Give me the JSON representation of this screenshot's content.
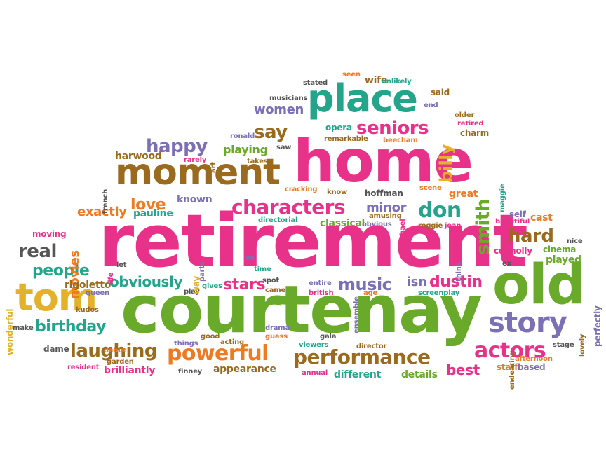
{
  "palette": {
    "magenta": "#e8328a",
    "green": "#6aaa2a",
    "brown": "#9a6a1e",
    "purple": "#7b70b6",
    "teal": "#22a58a",
    "orange": "#ee7a22",
    "yellow": "#e4b12a",
    "gray": "#555555"
  },
  "words": [
    {
      "text": "retirement",
      "color": "magenta"
    },
    {
      "text": "courtenay",
      "color": "green"
    },
    {
      "text": "home",
      "color": "magenta"
    },
    {
      "text": "old",
      "color": "green"
    },
    {
      "text": "place",
      "color": "teal"
    },
    {
      "text": "moment",
      "color": "brown"
    },
    {
      "text": "tom",
      "color": "yellow"
    },
    {
      "text": "story",
      "color": "purple"
    },
    {
      "text": "powerful",
      "color": "orange"
    },
    {
      "text": "performance",
      "color": "brown"
    },
    {
      "text": "characters",
      "color": "magenta"
    },
    {
      "text": "laughing",
      "color": "brown"
    },
    {
      "text": "actors",
      "color": "magenta"
    },
    {
      "text": "seniors",
      "color": "magenta"
    },
    {
      "text": "happy",
      "color": "purple"
    },
    {
      "text": "say",
      "color": "brown"
    },
    {
      "text": "don",
      "color": "teal"
    },
    {
      "text": "love",
      "color": "orange"
    },
    {
      "text": "birthday",
      "color": "teal"
    },
    {
      "text": "real",
      "color": "gray"
    },
    {
      "text": "people",
      "color": "teal"
    },
    {
      "text": "hard",
      "color": "brown"
    },
    {
      "text": "music",
      "color": "purple"
    },
    {
      "text": "dustin",
      "color": "magenta"
    },
    {
      "text": "obviously",
      "color": "teal"
    },
    {
      "text": "smith",
      "color": "green"
    },
    {
      "text": "billy",
      "color": "yellow"
    },
    {
      "text": "stars",
      "color": "magenta"
    },
    {
      "text": "exactly",
      "color": "orange"
    },
    {
      "text": "movies",
      "color": "orange"
    },
    {
      "text": "women",
      "color": "purple"
    },
    {
      "text": "best",
      "color": "magenta"
    },
    {
      "text": "isn",
      "color": "purple"
    },
    {
      "text": "minor",
      "color": "purple"
    },
    {
      "text": "known",
      "color": "purple"
    },
    {
      "text": "playing",
      "color": "green"
    },
    {
      "text": "harwood",
      "color": "brown"
    },
    {
      "text": "pauline",
      "color": "teal"
    },
    {
      "text": "brilliantly",
      "color": "magenta"
    },
    {
      "text": "appearance",
      "color": "brown"
    },
    {
      "text": "different",
      "color": "teal"
    },
    {
      "text": "details",
      "color": "green"
    },
    {
      "text": "classical",
      "color": "green"
    },
    {
      "text": "rigoletto",
      "color": "brown"
    },
    {
      "text": "opera",
      "color": "teal"
    },
    {
      "text": "great",
      "color": "orange"
    },
    {
      "text": "cast",
      "color": "orange"
    },
    {
      "text": "played",
      "color": "green"
    },
    {
      "text": "staff",
      "color": "orange"
    },
    {
      "text": "based",
      "color": "purple"
    },
    {
      "text": "dame",
      "color": "gray"
    },
    {
      "text": "wife",
      "color": "brown"
    },
    {
      "text": "said",
      "color": "brown"
    },
    {
      "text": "charm",
      "color": "brown"
    },
    {
      "text": "connolly",
      "color": "magenta"
    },
    {
      "text": "cinema",
      "color": "green"
    },
    {
      "text": "self",
      "color": "purple"
    },
    {
      "text": "moving",
      "color": "magenta"
    },
    {
      "text": "remarkable",
      "color": "brown"
    },
    {
      "text": "beecham",
      "color": "orange"
    },
    {
      "text": "hoffman",
      "color": "gray"
    },
    {
      "text": "know",
      "color": "brown"
    },
    {
      "text": "cracking",
      "color": "orange"
    },
    {
      "text": "ronald",
      "color": "purple"
    },
    {
      "text": "takes",
      "color": "brown"
    },
    {
      "text": "rarely",
      "color": "magenta"
    },
    {
      "text": "saw",
      "color": "gray"
    },
    {
      "text": "musicians",
      "color": "gray"
    },
    {
      "text": "stated",
      "color": "gray"
    },
    {
      "text": "seen",
      "color": "orange"
    },
    {
      "text": "unlikely",
      "color": "teal"
    },
    {
      "text": "end",
      "color": "purple"
    },
    {
      "text": "older",
      "color": "brown"
    },
    {
      "text": "retired",
      "color": "magenta"
    },
    {
      "text": "wonderful",
      "color": "yellow"
    },
    {
      "text": "perfectly",
      "color": "purple"
    },
    {
      "text": "make",
      "color": "gray"
    },
    {
      "text": "kudos",
      "color": "brown"
    },
    {
      "text": "queen",
      "color": "purple"
    },
    {
      "text": "debut",
      "color": "orange"
    },
    {
      "text": "garden",
      "color": "brown"
    },
    {
      "text": "resident",
      "color": "magenta"
    },
    {
      "text": "finney",
      "color": "gray"
    },
    {
      "text": "things",
      "color": "purple"
    },
    {
      "text": "good",
      "color": "brown"
    },
    {
      "text": "acting",
      "color": "brown"
    },
    {
      "text": "drama",
      "color": "purple"
    },
    {
      "text": "guess",
      "color": "orange"
    },
    {
      "text": "gala",
      "color": "gray"
    },
    {
      "text": "viewers",
      "color": "teal"
    },
    {
      "text": "director",
      "color": "brown"
    },
    {
      "text": "annual",
      "color": "magenta"
    },
    {
      "text": "stage",
      "color": "gray"
    },
    {
      "text": "afternoon",
      "color": "orange"
    },
    {
      "text": "lovely",
      "color": "brown"
    },
    {
      "text": "endearing",
      "color": "brown"
    },
    {
      "text": "screenplay",
      "color": "teal"
    },
    {
      "text": "entire",
      "color": "purple"
    },
    {
      "text": "british",
      "color": "magenta"
    },
    {
      "text": "age",
      "color": "orange"
    },
    {
      "text": "spot",
      "color": "gray"
    },
    {
      "text": "came",
      "color": "brown"
    },
    {
      "text": "time",
      "color": "teal"
    },
    {
      "text": "gives",
      "color": "teal"
    },
    {
      "text": "play",
      "color": "gray"
    },
    {
      "text": "way",
      "color": "yellow"
    },
    {
      "text": "parts",
      "color": "purple"
    },
    {
      "text": "ve",
      "color": "purple"
    },
    {
      "text": "let",
      "color": "gray"
    },
    {
      "text": "life",
      "color": "magenta"
    },
    {
      "text": "directorial",
      "color": "teal"
    },
    {
      "text": "obvious",
      "color": "purple"
    },
    {
      "text": "amusing",
      "color": "brown"
    },
    {
      "text": "michael",
      "color": "magenta"
    },
    {
      "text": "reggie",
      "color": "brown"
    },
    {
      "text": "jean",
      "color": "magenta"
    },
    {
      "text": "beautiful",
      "color": "magenta"
    },
    {
      "text": "scene",
      "color": "orange"
    },
    {
      "text": "maggie",
      "color": "teal"
    },
    {
      "text": "french",
      "color": "gray"
    },
    {
      "text": "art",
      "color": "brown"
    },
    {
      "text": "ensemble",
      "color": "purple"
    },
    {
      "text": "think",
      "color": "purple"
    },
    {
      "text": "nice",
      "color": "gray"
    },
    {
      "text": "ex",
      "color": "gray"
    }
  ]
}
